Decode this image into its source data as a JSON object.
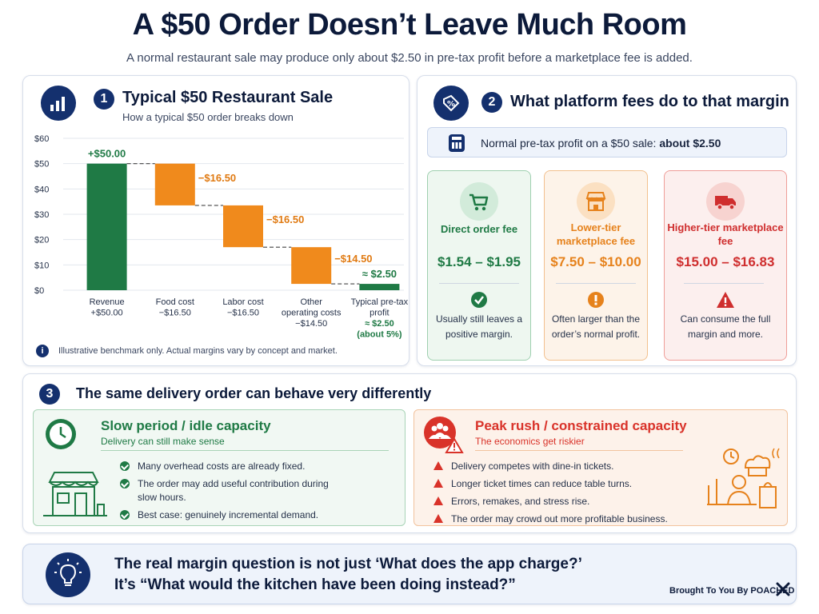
{
  "header": {
    "title": "A $50 Order Doesn’t Leave Much Room",
    "subtitle": "A normal restaurant sale may produce only about $2.50 in pre-tax profit before a marketplace fee is added."
  },
  "section1": {
    "number": "1",
    "title": "Typical $50 Restaurant Sale",
    "subtitle": "How a typical $50 order breaks down",
    "note": "Illustrative benchmark only. Actual margins vary by concept and market.",
    "icon": "bar-chart-icon"
  },
  "chart_data": {
    "type": "bar",
    "subtype": "waterfall",
    "categories": [
      "Revenue",
      "Food cost",
      "Labor cost",
      "Other operating costs",
      "Typical pre-tax profit"
    ],
    "category_labels": [
      [
        "Revenue",
        "+$50.00"
      ],
      [
        "Food cost",
        "−$16.50"
      ],
      [
        "Labor cost",
        "−$16.50"
      ],
      [
        "Other",
        "operating costs",
        "−$14.50"
      ],
      [
        "Typical pre-tax",
        "profit",
        "≈ $2.50",
        "(about 5%)"
      ]
    ],
    "values": [
      50.0,
      -16.5,
      -16.5,
      -14.5,
      2.5
    ],
    "bar_ranges": [
      [
        0,
        50
      ],
      [
        33.5,
        50
      ],
      [
        17,
        33.5
      ],
      [
        2.5,
        17
      ],
      [
        0,
        2.5
      ]
    ],
    "data_labels": [
      "+$50.00",
      "−$16.50",
      "−$16.50",
      "−$14.50",
      "≈ $2.50"
    ],
    "yticks": [
      "$0",
      "$10",
      "$20",
      "$30",
      "$40",
      "$50",
      "$60"
    ],
    "ylim": [
      0,
      60
    ],
    "grid": true,
    "colors": {
      "revenue": "#1f7a45",
      "cost": "#f08a1c",
      "profit": "#1f7a45",
      "connector": "#444444"
    }
  },
  "section2": {
    "number": "2",
    "title": "What platform fees do to that margin",
    "icon": "percent-tag-icon",
    "normal_profit_label": "Normal pre-tax profit on a $50 sale: ",
    "normal_profit_value": "about $2.50",
    "cards": [
      {
        "title": "Direct order fee",
        "value": "$1.54 – $1.95",
        "desc": "Usually still leaves a positive margin.",
        "icon": "cart-icon",
        "status_icon": "check-icon",
        "accent": "#1f7a45",
        "bg": "#eef7f0",
        "border": "#9fd0b0"
      },
      {
        "title": "Lower-tier marketplace fee",
        "value": "$7.50 – $10.00",
        "desc": "Often larger than the order’s normal profit.",
        "icon": "storefront-icon",
        "status_icon": "exclamation-icon",
        "accent": "#e6821c",
        "bg": "#fdf3e9",
        "border": "#f2c08e"
      },
      {
        "title": "Higher-tier marketplace fee",
        "value": "$15.00 – $16.83",
        "desc": "Can consume the full margin and more.",
        "icon": "truck-icon",
        "status_icon": "warning-icon",
        "accent": "#cf2e2e",
        "bg": "#fcefee",
        "border": "#ef9d98"
      }
    ]
  },
  "section3": {
    "number": "3",
    "title": "The same delivery order can behave very differently",
    "slow": {
      "title": "Slow period / idle capacity",
      "subtitle": "Delivery can still make sense",
      "bullets": [
        "Many overhead costs are already fixed.",
        "The order may add useful contribution during slow hours.",
        "Best case: genuinely incremental demand."
      ]
    },
    "peak": {
      "title": "Peak rush / constrained capacity",
      "subtitle": "The economics get riskier",
      "bullets": [
        "Delivery competes with dine-in tickets.",
        "Longer ticket times can reduce table turns.",
        "Errors, remakes, and stress rise.",
        "The order may crowd out more profitable business."
      ]
    }
  },
  "footer": {
    "line1": "The real margin question is not just ‘What does the app charge?’",
    "line2": "It’s “What would the kitchen have been doing instead?”",
    "credit": "Brought To You By POACHED",
    "icon": "lightbulb-icon"
  }
}
